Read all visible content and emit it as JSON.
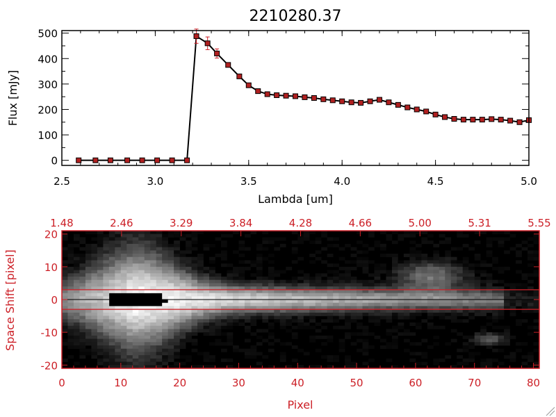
{
  "colors": {
    "red": "#cc1f26",
    "black": "#000000",
    "marker": "#b02020"
  },
  "chart_data": [
    {
      "type": "line",
      "title": "2210280.37",
      "xlabel": "Lambda [um]",
      "ylabel": "Flux [mJy]",
      "xlim": [
        2.5,
        5.0
      ],
      "ylim": [
        -20,
        510
      ],
      "xticks": [
        "2.5",
        "3.0",
        "3.5",
        "4.0",
        "4.5",
        "5.0"
      ],
      "yticks": [
        "0",
        "100",
        "200",
        "300",
        "400",
        "500"
      ],
      "grid": false,
      "series": [
        {
          "x": [
            2.59,
            2.68,
            2.76,
            2.85,
            2.93,
            3.01,
            3.09,
            3.17,
            3.22,
            3.28,
            3.33,
            3.39,
            3.45,
            3.5,
            3.55,
            3.6,
            3.65,
            3.7,
            3.75,
            3.8,
            3.85,
            3.9,
            3.95,
            4.0,
            4.05,
            4.1,
            4.15,
            4.2,
            4.25,
            4.3,
            4.35,
            4.4,
            4.45,
            4.5,
            4.55,
            4.6,
            4.65,
            4.7,
            4.75,
            4.8,
            4.85,
            4.9,
            4.95,
            5.0
          ],
          "values": [
            0,
            0,
            0,
            0,
            0,
            0,
            0,
            0,
            488,
            460,
            420,
            375,
            330,
            295,
            272,
            260,
            256,
            254,
            252,
            248,
            245,
            240,
            236,
            232,
            228,
            226,
            232,
            238,
            228,
            218,
            208,
            200,
            192,
            180,
            170,
            163,
            160,
            160,
            160,
            162,
            160,
            156,
            150,
            158
          ],
          "errors": [
            0,
            0,
            0,
            0,
            0,
            0,
            0,
            0,
            28,
            25,
            18,
            8,
            6,
            5,
            4,
            4,
            4,
            4,
            4,
            4,
            4,
            4,
            4,
            4,
            4,
            4,
            4,
            4,
            4,
            4,
            4,
            4,
            4,
            4,
            4,
            4,
            4,
            4,
            4,
            4,
            4,
            4,
            6,
            8
          ]
        }
      ]
    },
    {
      "type": "heatmap",
      "xlabel": "Pixel",
      "ylabel": "Space Shift [pixel]",
      "xlim": [
        0,
        81
      ],
      "ylim": [
        -21,
        21
      ],
      "xticks": [
        "0",
        "10",
        "20",
        "30",
        "40",
        "50",
        "60",
        "70",
        "80"
      ],
      "yticks": [
        "-20",
        "-10",
        "0",
        "10",
        "20"
      ],
      "top_xticks": [
        "1.48",
        "2.46",
        "3.29",
        "3.84",
        "4.28",
        "4.66",
        "5.00",
        "5.31",
        "5.55"
      ],
      "aperture_lines_y": [
        3,
        -3
      ],
      "colormap": "grayscale"
    }
  ]
}
